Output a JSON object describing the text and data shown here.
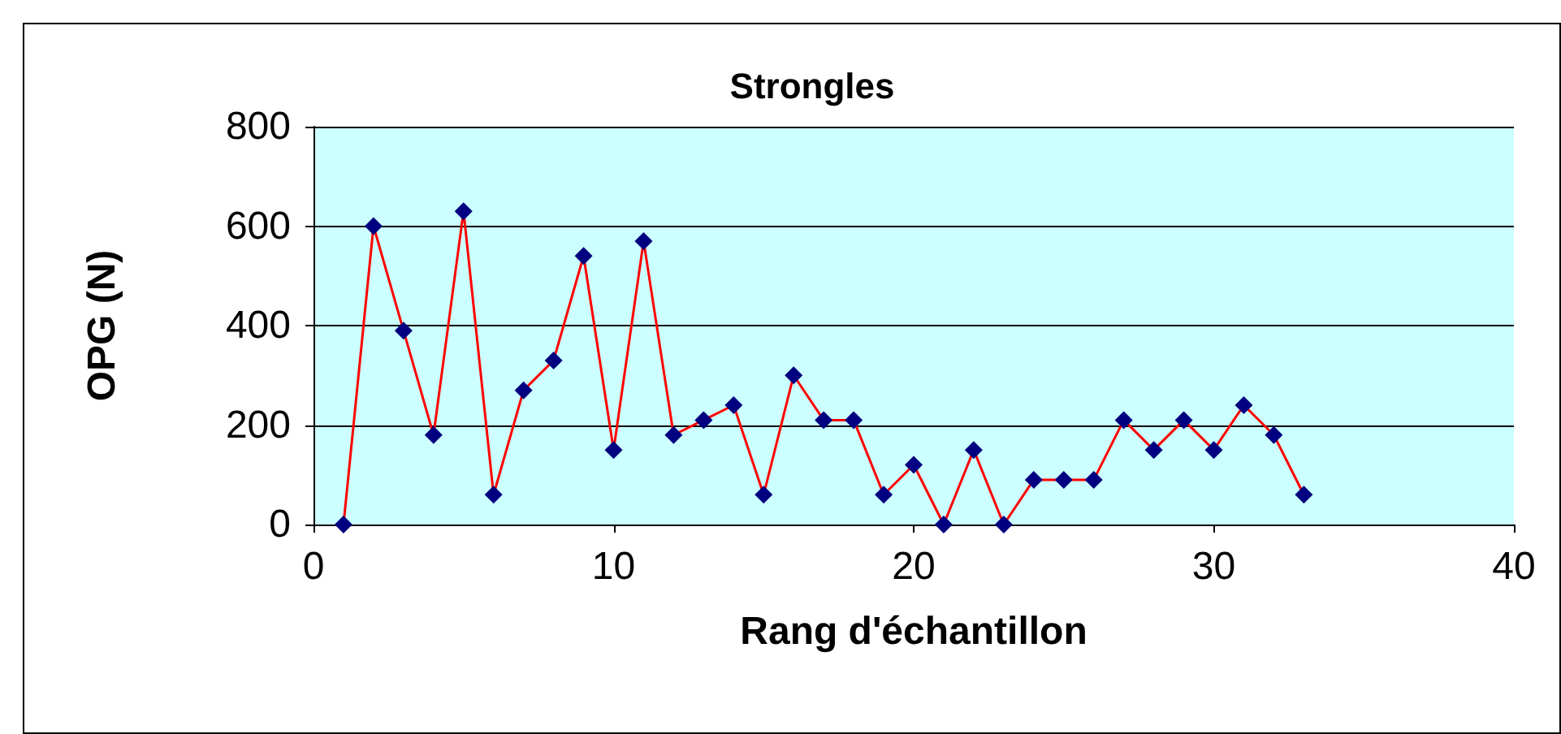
{
  "chart_data": {
    "type": "line",
    "title": "Strongles",
    "xlabel": "Rang d'échantillon",
    "ylabel": "OPG (N)",
    "x": [
      1,
      2,
      3,
      4,
      5,
      6,
      7,
      8,
      9,
      10,
      11,
      12,
      13,
      14,
      15,
      16,
      17,
      18,
      19,
      20,
      21,
      22,
      23,
      24,
      25,
      26,
      27,
      28,
      29,
      30,
      31,
      32,
      33
    ],
    "series": [
      {
        "color": "#ff0000",
        "values": [
          0,
          600,
          390,
          180,
          630,
          60,
          270,
          330,
          540,
          150,
          570,
          180,
          210,
          240,
          60,
          300,
          210,
          210,
          60,
          120,
          0,
          150,
          0,
          90,
          90,
          90,
          210,
          150,
          210,
          150,
          240,
          180,
          60
        ]
      }
    ],
    "xlim": [
      0,
      40
    ],
    "xticks": [
      0,
      10,
      20,
      30,
      40
    ],
    "ylim": [
      0,
      800
    ],
    "yticks": [
      0,
      200,
      400,
      600,
      800
    ],
    "grid": "y",
    "marker": "diamond",
    "line_style": "solid"
  }
}
